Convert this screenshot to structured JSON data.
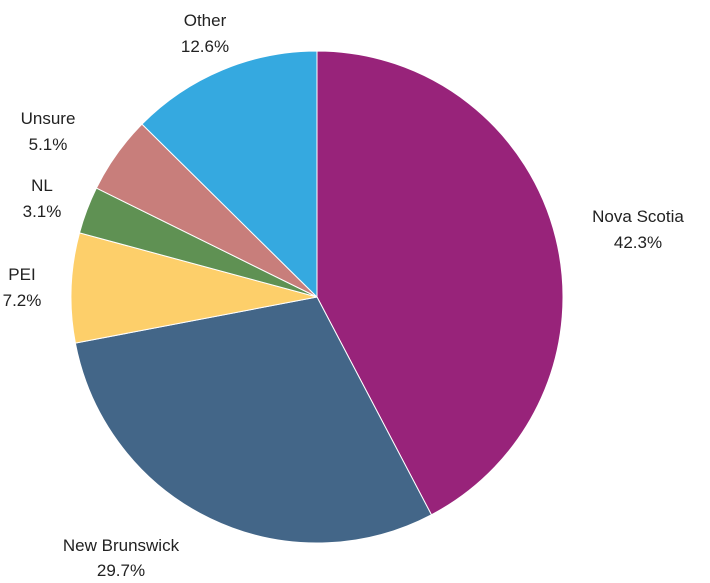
{
  "chart_data": {
    "type": "pie",
    "title": "",
    "slices": [
      {
        "label": "Nova Scotia",
        "value": 42.3,
        "display": "42.3%",
        "color": "#98237A"
      },
      {
        "label": "New Brunswick",
        "value": 29.7,
        "display": "29.7%",
        "color": "#436688"
      },
      {
        "label": "PEI",
        "value": 7.2,
        "display": "7.2%",
        "color": "#FDCF6A"
      },
      {
        "label": "NL",
        "value": 3.1,
        "display": "3.1%",
        "color": "#5F9153"
      },
      {
        "label": "Unsure",
        "value": 5.1,
        "display": "5.1%",
        "color": "#C87E7B"
      },
      {
        "label": "Other",
        "value": 12.6,
        "display": "12.6%",
        "color": "#35A9E0"
      }
    ],
    "start_angle": "12 o'clock",
    "direction": "clockwise",
    "legend": "none (labels outside slices)"
  }
}
